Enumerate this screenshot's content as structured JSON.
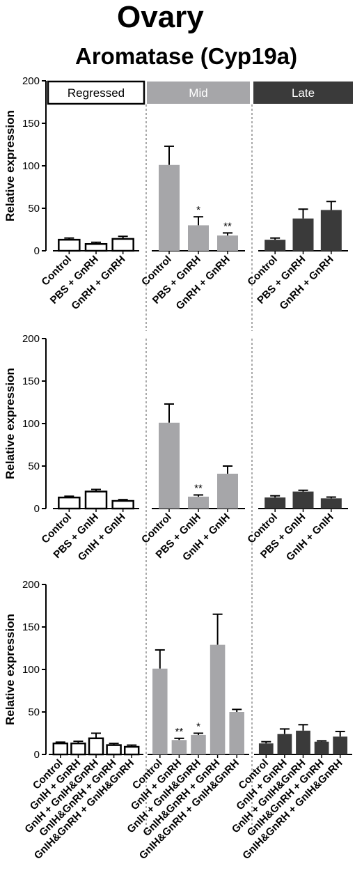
{
  "title": "Ovary",
  "subtitle": "Aromatase (Cyp19a)",
  "colors": {
    "Regressed": "#ffffff",
    "Mid": "#a6a6a9",
    "Late": "#3a3a3a"
  },
  "chart_data": [
    {
      "type": "bar",
      "ylabel": "Relative expression",
      "ylim": [
        0,
        200
      ],
      "yticks": [
        0,
        50,
        100,
        150,
        200
      ],
      "stage_header": [
        "Regressed",
        "Mid",
        "Late"
      ],
      "groups": [
        {
          "name": "Regressed",
          "categories": [
            "Control",
            "PBS + GnRH",
            "GnRH + GnRH"
          ],
          "values": [
            13,
            8,
            14
          ],
          "errors": [
            2,
            2,
            3
          ],
          "sig": [
            "",
            "",
            ""
          ]
        },
        {
          "name": "Mid",
          "categories": [
            "Control",
            "PBS + GnRH",
            "GnRH + GnRH"
          ],
          "values": [
            101,
            30,
            18
          ],
          "errors": [
            22,
            10,
            3
          ],
          "sig": [
            "",
            "*",
            "**"
          ]
        },
        {
          "name": "Late",
          "categories": [
            "Control",
            "PBS + GnRH",
            "GnRH + GnRH"
          ],
          "values": [
            13,
            38,
            48
          ],
          "errors": [
            2,
            11,
            10
          ],
          "sig": [
            "",
            "",
            ""
          ]
        }
      ]
    },
    {
      "type": "bar",
      "ylabel": "Relative expression",
      "ylim": [
        0,
        200
      ],
      "yticks": [
        0,
        50,
        100,
        150,
        200
      ],
      "groups": [
        {
          "name": "Regressed",
          "categories": [
            "Control",
            "PBS + GnIH",
            "GnIH + GnIH"
          ],
          "values": [
            13,
            20,
            9
          ],
          "errors": [
            1.5,
            2.5,
            1.5
          ],
          "sig": [
            "",
            "",
            ""
          ]
        },
        {
          "name": "Mid",
          "categories": [
            "Control",
            "PBS + GnIH",
            "GnIH + GnIH"
          ],
          "values": [
            101,
            14,
            41
          ],
          "errors": [
            22,
            2,
            9
          ],
          "sig": [
            "",
            "**",
            ""
          ]
        },
        {
          "name": "Late",
          "categories": [
            "Control",
            "PBS + GnIH",
            "GnIH + GnIH"
          ],
          "values": [
            13,
            20,
            12
          ],
          "errors": [
            2,
            1.5,
            1.5
          ],
          "sig": [
            "",
            "",
            ""
          ]
        }
      ]
    },
    {
      "type": "bar",
      "ylabel": "Relative expression",
      "ylim": [
        0,
        200
      ],
      "yticks": [
        0,
        50,
        100,
        150,
        200
      ],
      "groups": [
        {
          "name": "Regressed",
          "categories": [
            "Control",
            "GnIH + GnRH",
            "GnIH + GnIH&GnRH",
            "GnIH&GnRH + GnRH",
            "GnIH&GnRH + GnIH&GnRH"
          ],
          "values": [
            13,
            13,
            19,
            11,
            9
          ],
          "errors": [
            1.5,
            2.5,
            6,
            2,
            2
          ],
          "sig": [
            "",
            "",
            "",
            "",
            ""
          ]
        },
        {
          "name": "Mid",
          "categories": [
            "Control",
            "GnIH + GnRH",
            "GnIH + GnIH&GnRH",
            "GnIH&GnRH + GnRH",
            "GnIH&GnRH + GnIH&GnRH"
          ],
          "values": [
            101,
            17,
            23,
            129,
            50
          ],
          "errors": [
            22,
            2,
            2,
            36,
            3
          ],
          "sig": [
            "",
            "**",
            "*",
            "",
            ""
          ]
        },
        {
          "name": "Late",
          "categories": [
            "Control",
            "GnIH + GnRH",
            "GnIH + GnIH&GnRH",
            "GnIH&GnRH + GnRH",
            "GnIH&GnRH + GnIH&GnRH"
          ],
          "values": [
            13,
            24,
            28,
            15,
            21
          ],
          "errors": [
            2,
            6,
            7,
            1,
            6
          ],
          "sig": [
            "",
            "",
            "",
            "",
            ""
          ]
        }
      ]
    }
  ]
}
